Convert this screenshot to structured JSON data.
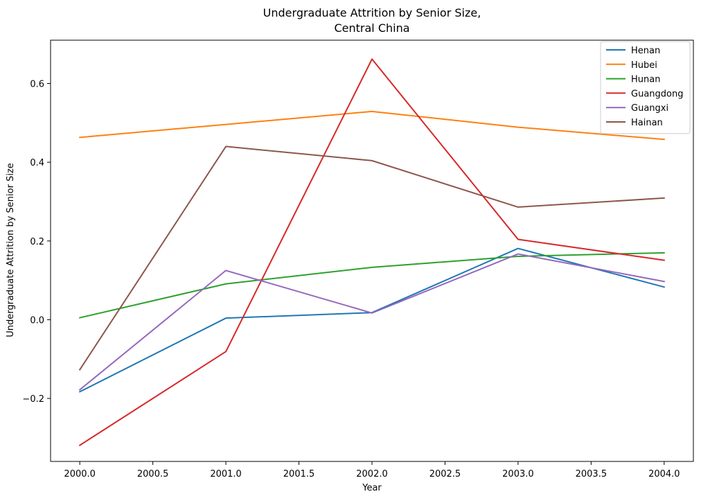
{
  "chart_data": {
    "type": "line",
    "title_lines": [
      "Undergraduate Attrition by Senior Size,",
      "Central China"
    ],
    "xlabel": "Year",
    "ylabel": "Undergraduate Attrition by Senior Size",
    "x": [
      2000,
      2001,
      2002,
      2003,
      2004
    ],
    "xlim": [
      1999.8,
      2004.2
    ],
    "ylim": [
      -0.36,
      0.71
    ],
    "xticks": [
      2000.0,
      2000.5,
      2001.0,
      2001.5,
      2002.0,
      2002.5,
      2003.0,
      2003.5,
      2004.0
    ],
    "xtick_labels": [
      "2000.0",
      "2000.5",
      "2001.0",
      "2001.5",
      "2002.0",
      "2002.5",
      "2003.0",
      "2003.5",
      "2004.0"
    ],
    "yticks": [
      -0.2,
      0.0,
      0.2,
      0.4,
      0.6
    ],
    "ytick_labels": [
      "−0.2",
      "0.0",
      "0.2",
      "0.4",
      "0.6"
    ],
    "grid": false,
    "legend_position": "top-right",
    "series": [
      {
        "name": "Henan",
        "color": "#1f77b4",
        "values": [
          -0.183,
          0.004,
          0.018,
          0.181,
          0.083
        ]
      },
      {
        "name": "Hubei",
        "color": "#ff7f0e",
        "values": [
          0.463,
          0.496,
          0.529,
          0.489,
          0.458
        ]
      },
      {
        "name": "Hunan",
        "color": "#2ca02c",
        "values": [
          0.005,
          0.091,
          0.133,
          0.161,
          0.17
        ]
      },
      {
        "name": "Guangdong",
        "color": "#d62728",
        "values": [
          -0.319,
          -0.081,
          0.662,
          0.204,
          0.151
        ]
      },
      {
        "name": "Guangxi",
        "color": "#9467bd",
        "values": [
          -0.178,
          0.125,
          0.017,
          0.167,
          0.097
        ]
      },
      {
        "name": "Hainan",
        "color": "#8c564b",
        "values": [
          -0.127,
          0.44,
          0.404,
          0.286,
          0.309
        ]
      }
    ]
  }
}
